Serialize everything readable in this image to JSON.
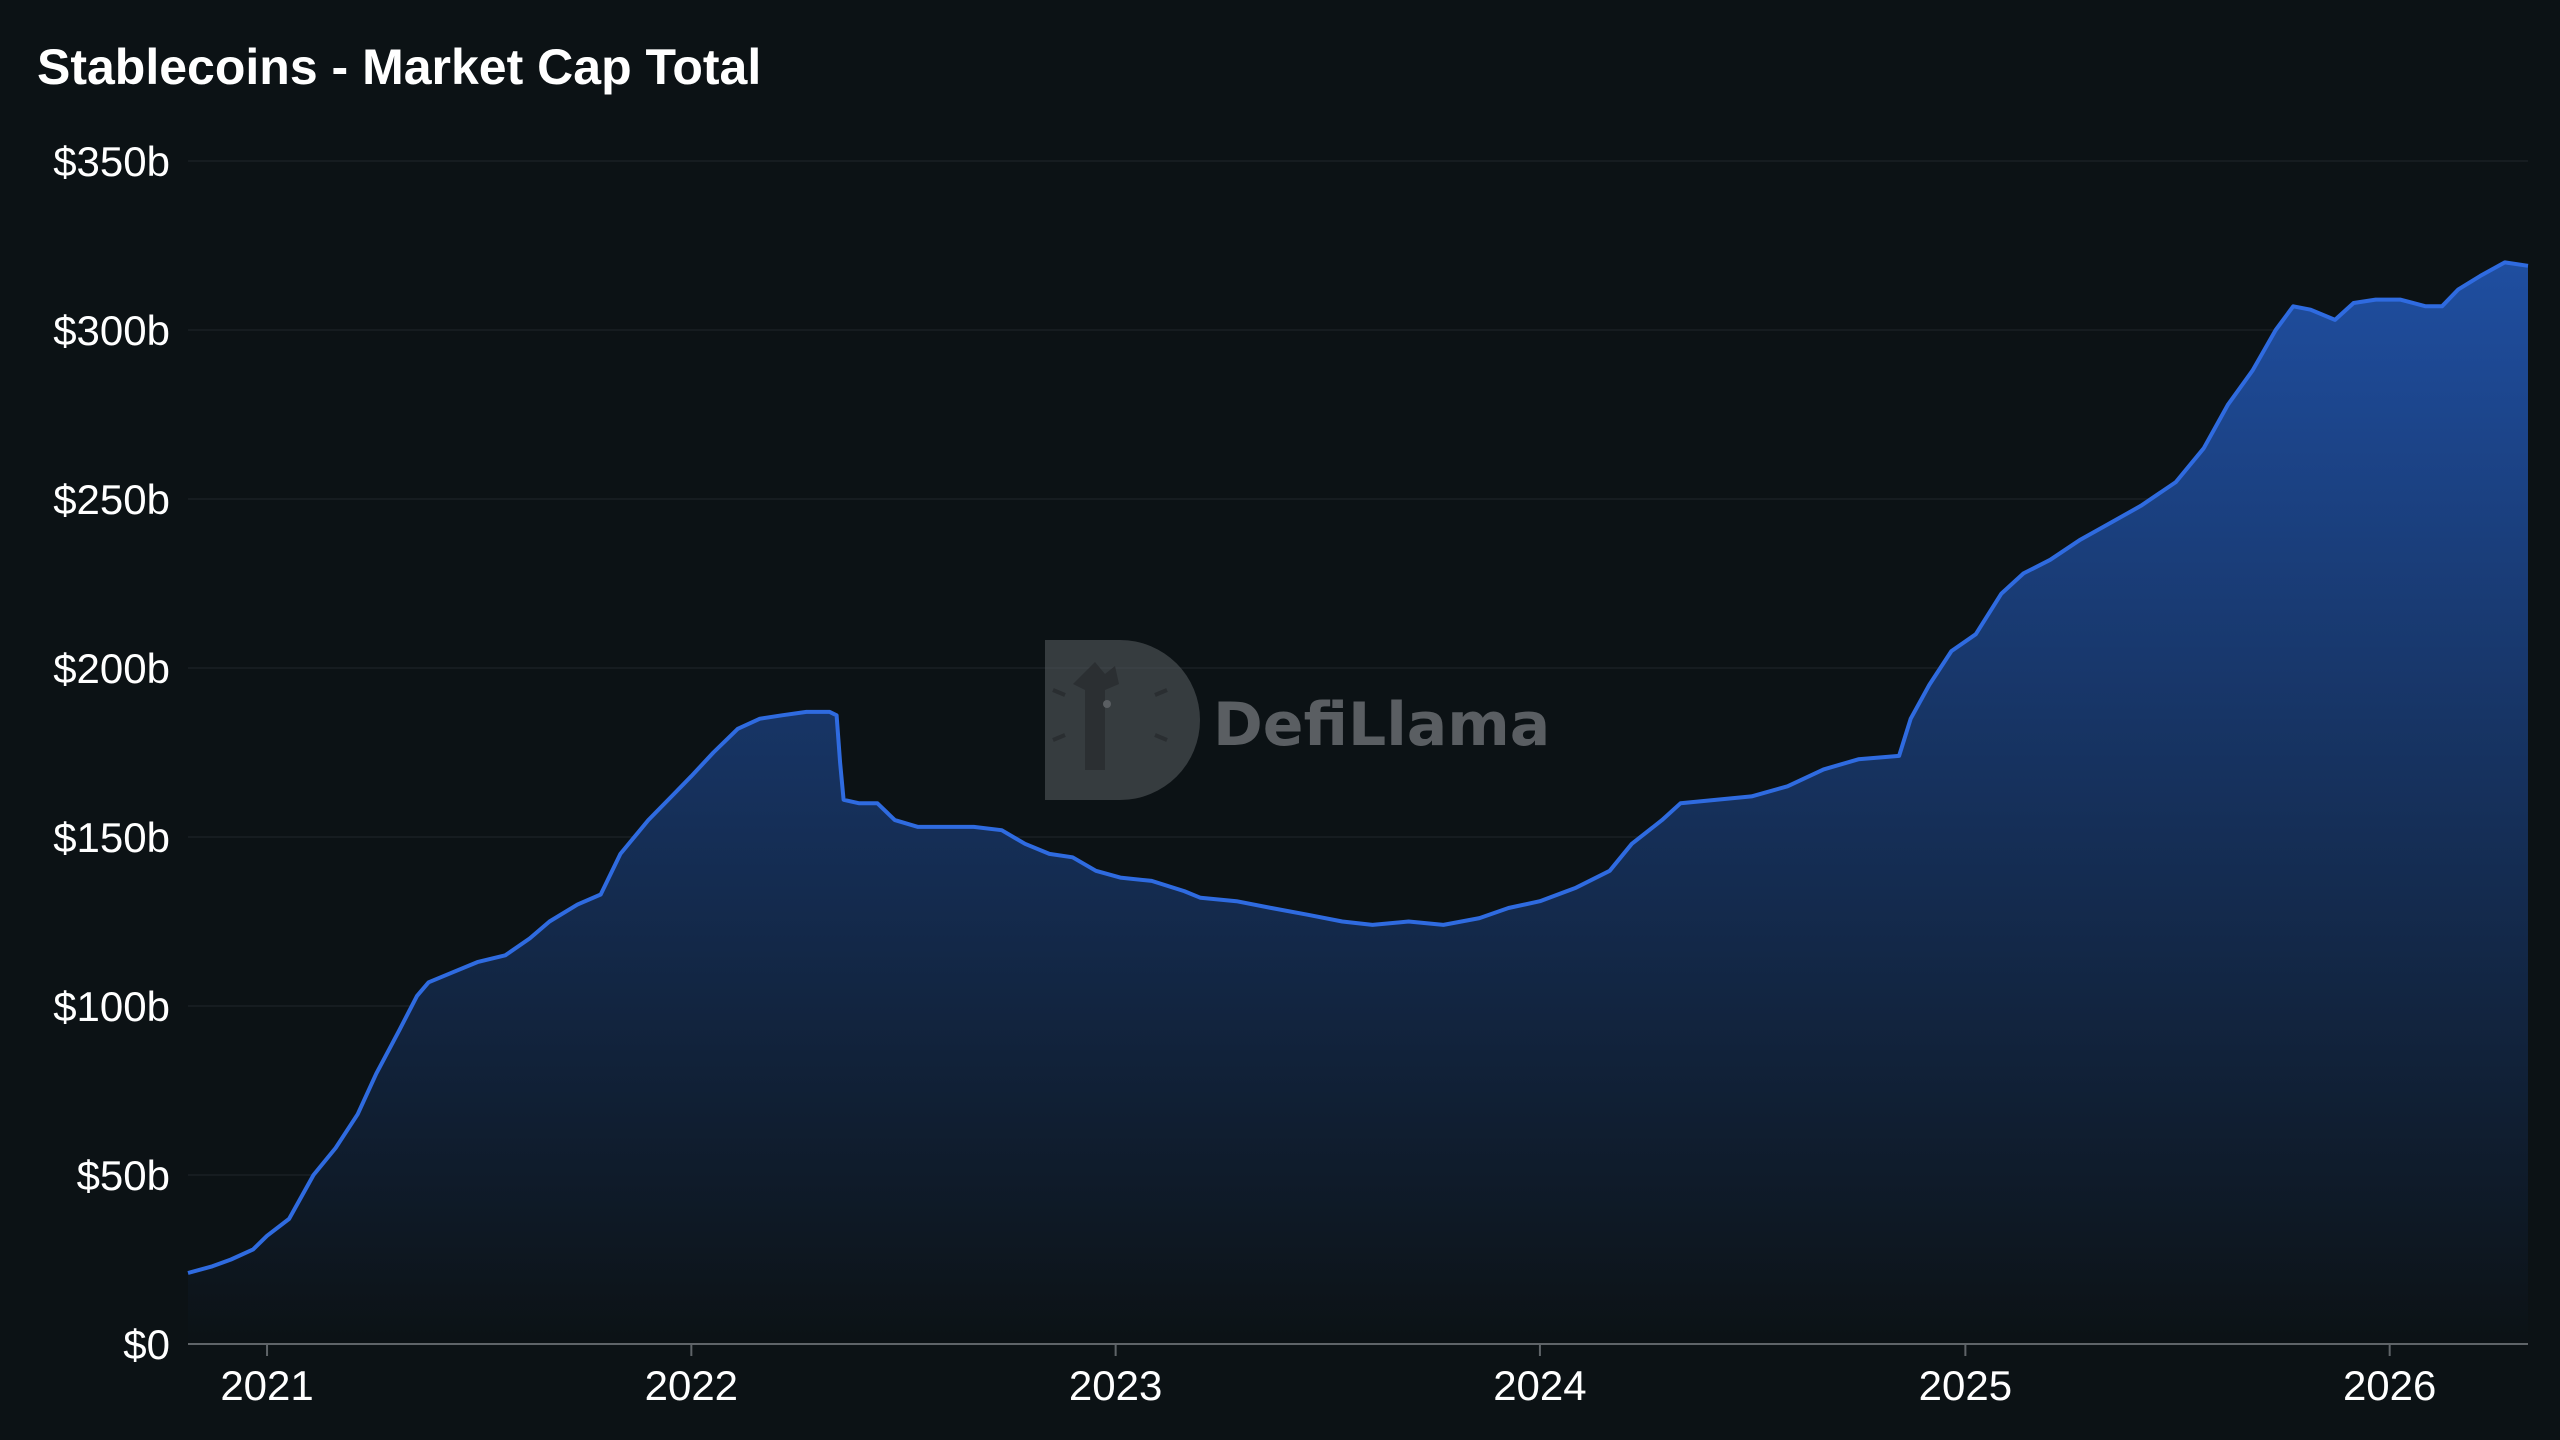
{
  "colors": {
    "background": "#0c1215",
    "line": "#2f6be0",
    "area_top": "#1f4ea0",
    "area_bottom": "#0c1215",
    "watermark": "#5a5e62"
  },
  "watermark": {
    "text": "DefiLlama",
    "icon": "defillama-logo-icon"
  },
  "chart_data": {
    "type": "area",
    "title": "Stablecoins - Market Cap Total",
    "xlabel": "",
    "ylabel": "",
    "y_unit": "$ billions",
    "grid": true,
    "legend": "none",
    "xlim": [
      "2020-10-25",
      "2026-04-30"
    ],
    "ylim": [
      0,
      350
    ],
    "x_ticks": [
      {
        "date": "2021-01-01",
        "label": "2021"
      },
      {
        "date": "2022-01-01",
        "label": "2022"
      },
      {
        "date": "2023-01-01",
        "label": "2023"
      },
      {
        "date": "2024-01-01",
        "label": "2024"
      },
      {
        "date": "2025-01-01",
        "label": "2025"
      },
      {
        "date": "2026-01-01",
        "label": "2026"
      }
    ],
    "y_ticks": [
      {
        "value": 0,
        "label": "$0"
      },
      {
        "value": 50,
        "label": "$50b"
      },
      {
        "value": 100,
        "label": "$100b"
      },
      {
        "value": 150,
        "label": "$150b"
      },
      {
        "value": 200,
        "label": "$200b"
      },
      {
        "value": 250,
        "label": "$250b"
      },
      {
        "value": 300,
        "label": "$300b"
      },
      {
        "value": 350,
        "label": "$350b"
      }
    ],
    "series": [
      {
        "points": [
          [
            "2020-10-25",
            21
          ],
          [
            "2020-11-15",
            23
          ],
          [
            "2020-12-01",
            25
          ],
          [
            "2020-12-20",
            28
          ],
          [
            "2021-01-01",
            32
          ],
          [
            "2021-01-20",
            37
          ],
          [
            "2021-02-10",
            50
          ],
          [
            "2021-03-01",
            58
          ],
          [
            "2021-03-20",
            68
          ],
          [
            "2021-04-05",
            80
          ],
          [
            "2021-04-25",
            93
          ],
          [
            "2021-05-10",
            103
          ],
          [
            "2021-05-20",
            107
          ],
          [
            "2021-06-10",
            110
          ],
          [
            "2021-07-01",
            113
          ],
          [
            "2021-07-25",
            115
          ],
          [
            "2021-08-15",
            120
          ],
          [
            "2021-09-01",
            125
          ],
          [
            "2021-09-25",
            130
          ],
          [
            "2021-10-15",
            133
          ],
          [
            "2021-11-01",
            145
          ],
          [
            "2021-11-25",
            155
          ],
          [
            "2021-12-15",
            162
          ],
          [
            "2022-01-01",
            168
          ],
          [
            "2022-01-20",
            175
          ],
          [
            "2022-02-10",
            182
          ],
          [
            "2022-03-01",
            185
          ],
          [
            "2022-03-20",
            186
          ],
          [
            "2022-04-10",
            187
          ],
          [
            "2022-04-30",
            187
          ],
          [
            "2022-05-06",
            186
          ],
          [
            "2022-05-09",
            172
          ],
          [
            "2022-05-12",
            161
          ],
          [
            "2022-05-25",
            160
          ],
          [
            "2022-06-10",
            160
          ],
          [
            "2022-06-25",
            155
          ],
          [
            "2022-07-15",
            153
          ],
          [
            "2022-08-10",
            153
          ],
          [
            "2022-09-01",
            153
          ],
          [
            "2022-09-25",
            152
          ],
          [
            "2022-10-15",
            148
          ],
          [
            "2022-11-05",
            145
          ],
          [
            "2022-11-25",
            144
          ],
          [
            "2022-12-15",
            140
          ],
          [
            "2023-01-05",
            138
          ],
          [
            "2023-02-01",
            137
          ],
          [
            "2023-03-01",
            134
          ],
          [
            "2023-03-15",
            132
          ],
          [
            "2023-04-15",
            131
          ],
          [
            "2023-05-15",
            129
          ],
          [
            "2023-06-15",
            127
          ],
          [
            "2023-07-15",
            125
          ],
          [
            "2023-08-10",
            124
          ],
          [
            "2023-09-10",
            125
          ],
          [
            "2023-10-10",
            124
          ],
          [
            "2023-11-10",
            126
          ],
          [
            "2023-12-05",
            129
          ],
          [
            "2024-01-01",
            131
          ],
          [
            "2024-02-01",
            135
          ],
          [
            "2024-03-01",
            140
          ],
          [
            "2024-03-20",
            148
          ],
          [
            "2024-04-15",
            155
          ],
          [
            "2024-05-01",
            160
          ],
          [
            "2024-06-01",
            161
          ],
          [
            "2024-07-01",
            162
          ],
          [
            "2024-08-01",
            165
          ],
          [
            "2024-09-01",
            170
          ],
          [
            "2024-10-01",
            173
          ],
          [
            "2024-11-05",
            174
          ],
          [
            "2024-11-15",
            185
          ],
          [
            "2024-12-01",
            195
          ],
          [
            "2024-12-20",
            205
          ],
          [
            "2025-01-10",
            210
          ],
          [
            "2025-02-01",
            222
          ],
          [
            "2025-02-20",
            228
          ],
          [
            "2025-03-15",
            232
          ],
          [
            "2025-04-10",
            238
          ],
          [
            "2025-05-01",
            242
          ],
          [
            "2025-06-01",
            248
          ],
          [
            "2025-07-01",
            255
          ],
          [
            "2025-07-25",
            265
          ],
          [
            "2025-08-15",
            278
          ],
          [
            "2025-09-05",
            288
          ],
          [
            "2025-09-25",
            300
          ],
          [
            "2025-10-10",
            307
          ],
          [
            "2025-10-25",
            306
          ],
          [
            "2025-11-15",
            303
          ],
          [
            "2025-12-01",
            308
          ],
          [
            "2025-12-20",
            309
          ],
          [
            "2026-01-10",
            309
          ],
          [
            "2026-02-01",
            307
          ],
          [
            "2026-02-15",
            307
          ],
          [
            "2026-03-01",
            312
          ],
          [
            "2026-03-20",
            316
          ],
          [
            "2026-04-10",
            320
          ],
          [
            "2026-04-30",
            319
          ]
        ]
      }
    ]
  }
}
